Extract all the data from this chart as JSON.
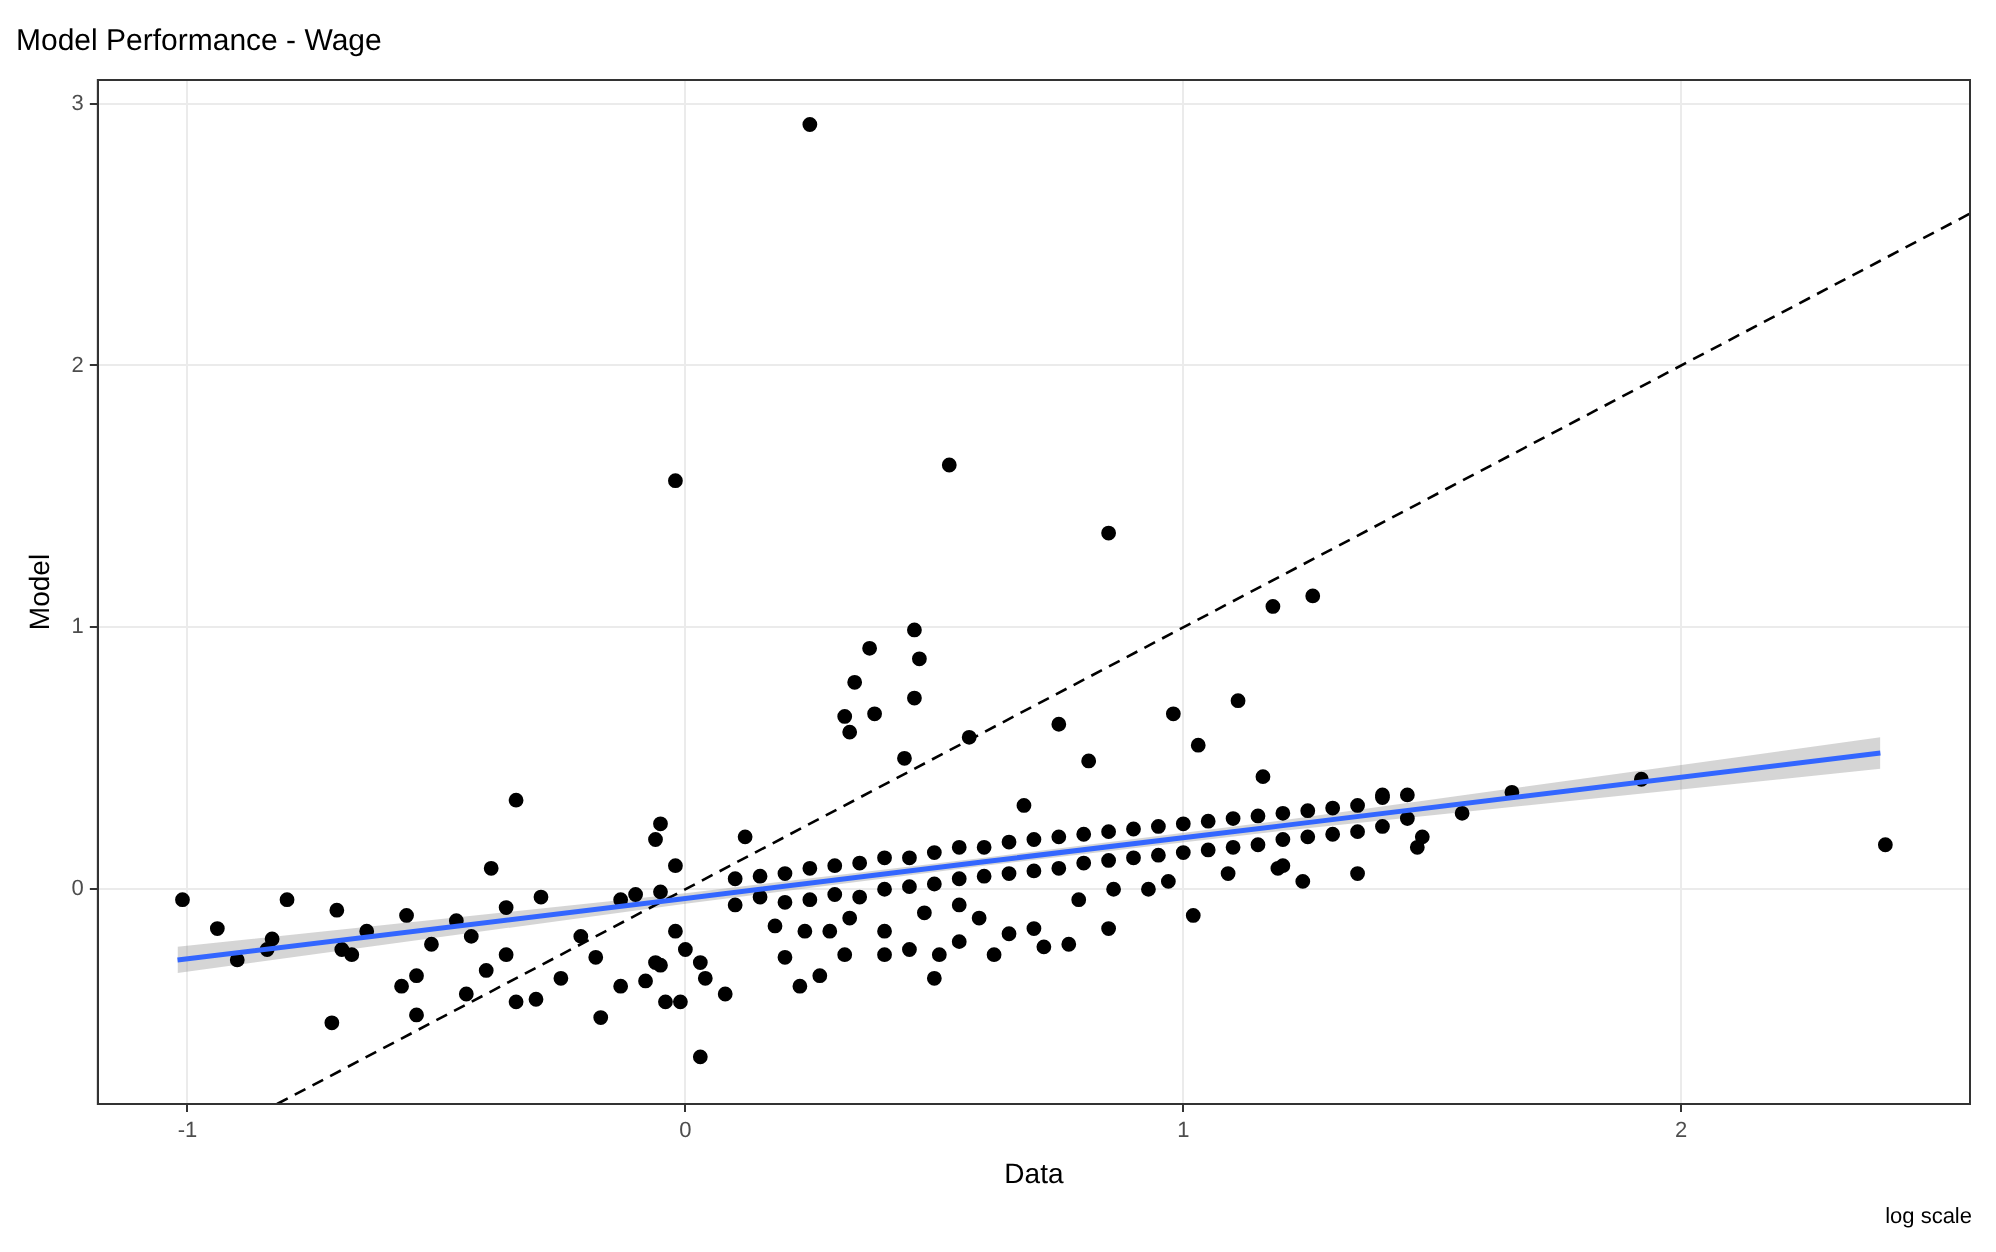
{
  "chart_data": {
    "type": "scatter",
    "title": "Model Performance - Wage",
    "xlabel": "Data",
    "ylabel": "Model",
    "annotations": [
      "log scale"
    ],
    "xlim": [
      -1.18,
      2.58
    ],
    "ylim": [
      -0.82,
      3.09
    ],
    "xticks": [
      -1,
      0,
      1,
      2
    ],
    "yticks": [
      0,
      1,
      2,
      3
    ],
    "grid": true,
    "legend": false,
    "series": [
      {
        "type": "scatter",
        "color": "#000000",
        "marker": "circle",
        "x": [
          0.25,
          -0.02,
          0.53,
          0.85,
          1.18,
          1.26,
          0.46,
          0.37,
          0.47,
          0.34,
          0.38,
          0.32,
          0.33,
          0.46,
          0.44,
          0.57,
          0.75,
          0.81,
          0.98,
          1.03,
          1.11,
          1.16,
          0.68,
          0.12,
          0.03,
          0.5,
          1.02,
          0.08,
          -0.04,
          -0.01,
          0.04,
          0.03,
          0.23,
          0.27,
          0.2,
          0.32,
          0.4,
          0.45,
          0.51,
          0.55,
          0.62,
          0.65,
          0.72,
          0.77,
          0.7,
          0.59,
          0.55,
          0.85,
          0.79,
          0.86,
          0.93,
          0.97,
          1.09,
          1.2,
          0.29,
          0.24,
          0.18,
          0.4,
          0.33,
          0.48,
          -0.02,
          -0.06,
          -0.02,
          -0.05,
          0.1,
          0.1,
          0.15,
          0.15,
          0.2,
          0.2,
          0.25,
          0.25,
          0.3,
          0.3,
          0.35,
          0.35,
          0.4,
          0.4,
          0.45,
          0.45,
          0.5,
          0.5,
          0.55,
          0.55,
          0.6,
          0.6,
          0.65,
          0.65,
          0.7,
          0.7,
          0.75,
          0.75,
          0.8,
          0.8,
          0.85,
          0.85,
          0.9,
          0.9,
          0.95,
          0.95,
          1.0,
          1.0,
          1.05,
          1.05,
          1.1,
          1.1,
          1.15,
          1.15,
          1.2,
          1.2,
          1.25,
          1.25,
          1.3,
          1.3,
          1.35,
          1.35,
          1.4,
          1.4,
          1.45,
          1.45,
          1.56,
          1.66,
          1.92,
          2.41,
          1.19,
          1.24,
          1.35,
          1.47,
          1.48,
          1.4,
          -1.01,
          -0.94,
          -0.9,
          -0.84,
          -0.8,
          -0.83,
          -0.7,
          -0.71,
          -0.69,
          -0.67,
          -0.64,
          -0.56,
          -0.57,
          -0.54,
          -0.54,
          -0.51,
          -0.46,
          -0.43,
          -0.44,
          -0.4,
          -0.39,
          -0.36,
          -0.36,
          -0.34,
          -0.34,
          -0.3,
          -0.29,
          -0.25,
          -0.21,
          -0.18,
          -0.17,
          -0.13,
          -0.1,
          -0.08,
          -0.05,
          -0.06,
          0.0,
          -0.13,
          -0.05
        ],
        "values": [
          2.92,
          1.56,
          1.62,
          1.36,
          1.08,
          1.12,
          0.99,
          0.92,
          0.88,
          0.79,
          0.67,
          0.66,
          0.6,
          0.73,
          0.5,
          0.58,
          0.63,
          0.49,
          0.67,
          0.55,
          0.72,
          0.43,
          0.32,
          0.2,
          -0.64,
          -0.34,
          -0.1,
          -0.4,
          -0.43,
          -0.43,
          -0.34,
          -0.28,
          -0.37,
          -0.33,
          -0.26,
          -0.25,
          -0.25,
          -0.23,
          -0.25,
          -0.2,
          -0.25,
          -0.17,
          -0.22,
          -0.21,
          -0.15,
          -0.11,
          -0.06,
          -0.15,
          -0.04,
          0.0,
          0.0,
          0.03,
          0.06,
          0.09,
          -0.16,
          -0.16,
          -0.14,
          -0.16,
          -0.11,
          -0.09,
          -0.16,
          -0.28,
          0.09,
          0.25,
          0.04,
          -0.06,
          0.05,
          -0.03,
          0.06,
          -0.05,
          0.08,
          -0.04,
          0.09,
          -0.02,
          0.1,
          -0.03,
          0.12,
          0.0,
          0.12,
          0.01,
          0.14,
          0.02,
          0.16,
          0.04,
          0.16,
          0.05,
          0.18,
          0.06,
          0.19,
          0.07,
          0.2,
          0.08,
          0.21,
          0.1,
          0.22,
          0.11,
          0.23,
          0.12,
          0.24,
          0.13,
          0.25,
          0.14,
          0.26,
          0.15,
          0.27,
          0.16,
          0.28,
          0.17,
          0.29,
          0.19,
          0.3,
          0.2,
          0.31,
          0.21,
          0.32,
          0.22,
          0.35,
          0.24,
          0.36,
          0.27,
          0.29,
          0.37,
          0.42,
          0.17,
          0.08,
          0.03,
          0.06,
          0.16,
          0.2,
          0.36,
          -0.04,
          -0.15,
          -0.27,
          -0.23,
          -0.04,
          -0.19,
          -0.08,
          -0.51,
          -0.23,
          -0.25,
          -0.16,
          -0.1,
          -0.37,
          -0.33,
          -0.48,
          -0.21,
          -0.12,
          -0.18,
          -0.4,
          -0.31,
          0.08,
          -0.07,
          -0.25,
          0.34,
          -0.43,
          -0.42,
          -0.03,
          -0.34,
          -0.18,
          -0.26,
          -0.49,
          -0.37,
          -0.02,
          -0.35,
          -0.29,
          0.19,
          -0.23,
          -0.04,
          -0.01
        ]
      },
      {
        "type": "line",
        "color": "#3366ff",
        "marker": "none",
        "line_style": "solid",
        "x": [
          -1.02,
          0,
          0.6,
          1.2,
          2.4
        ],
        "values": [
          -0.27,
          -0.035,
          0.105,
          0.243,
          0.52
        ],
        "lower": [
          -0.32,
          -0.055,
          0.09,
          0.223,
          0.46
        ],
        "upper": [
          -0.22,
          -0.015,
          0.12,
          0.263,
          0.58
        ]
      },
      {
        "type": "line",
        "color": "#000000",
        "marker": "none",
        "line_style": "dashed",
        "x": [
          -0.82,
          2.58
        ],
        "values": [
          -0.82,
          2.58
        ]
      }
    ]
  }
}
